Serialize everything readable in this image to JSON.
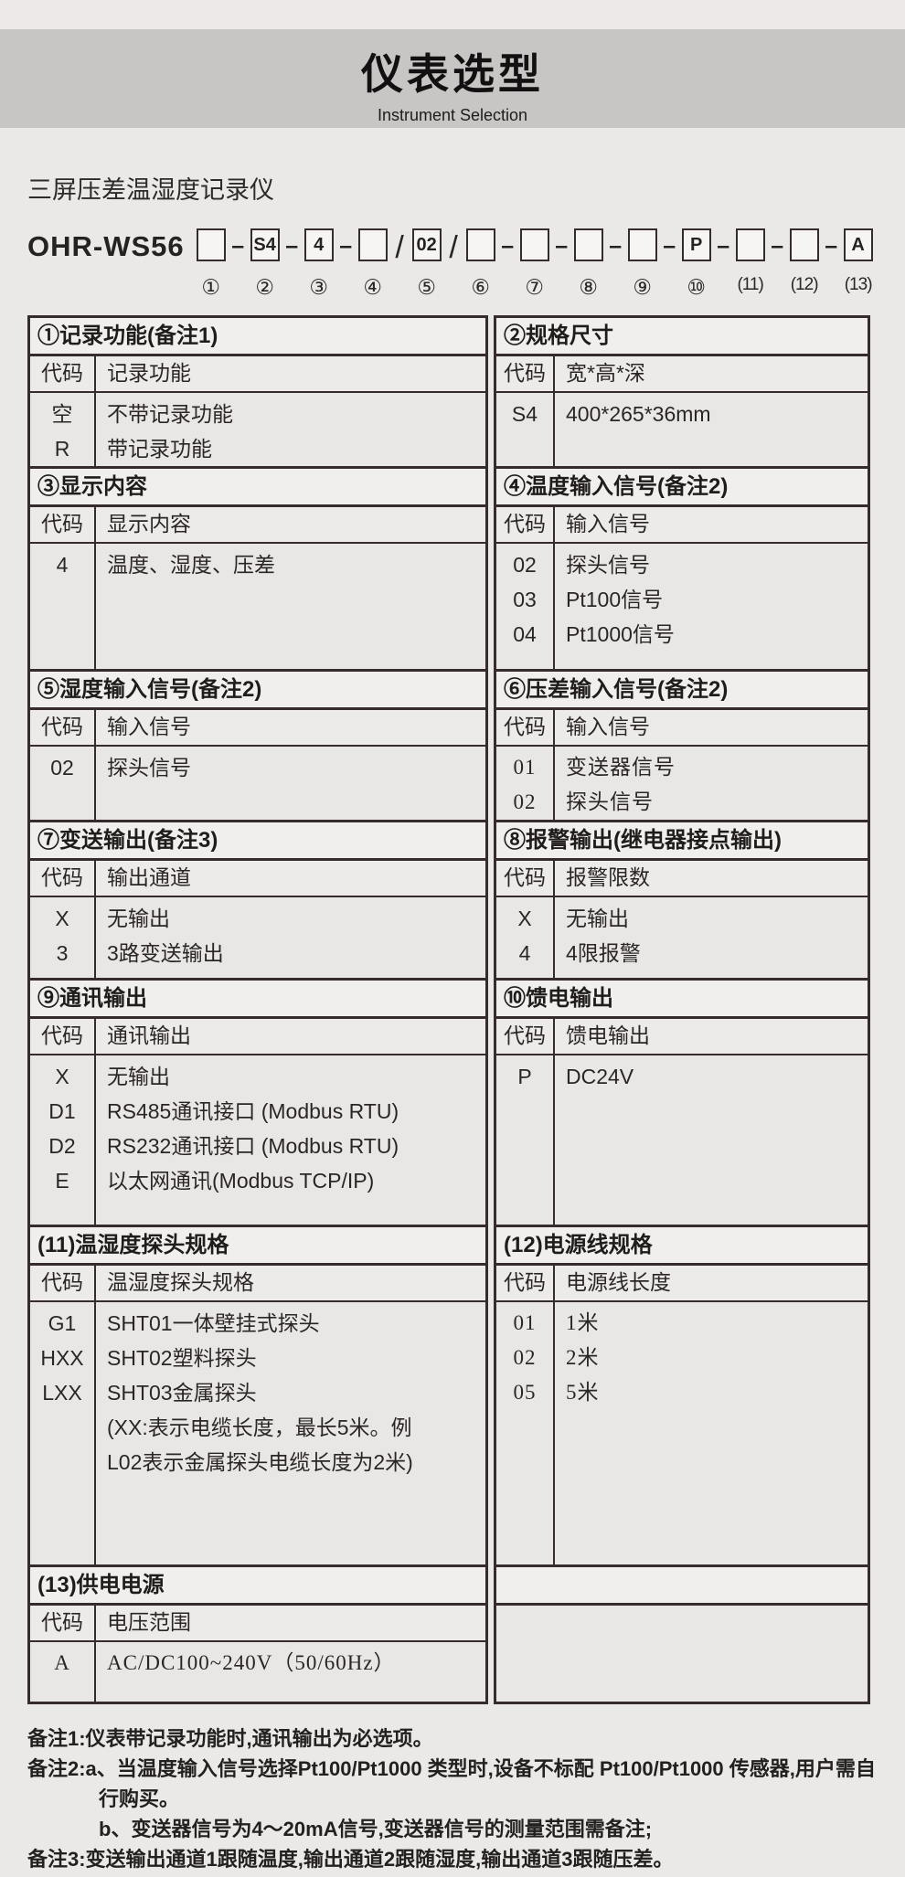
{
  "banner": {
    "title": "仪表选型",
    "subtitle": "Instrument Selection",
    "bg_color": "#c8c6c4"
  },
  "product": {
    "name": "三屏压差温湿度记录仪",
    "model_prefix": "OHR-WS56"
  },
  "model_code": {
    "units": [
      {
        "value": "",
        "label": "①",
        "sep": "–"
      },
      {
        "value": "S4",
        "label": "②",
        "sep": "–"
      },
      {
        "value": "4",
        "label": "③",
        "sep": "–"
      },
      {
        "value": "",
        "label": "④",
        "sep": "/"
      },
      {
        "value": "02",
        "label": "⑤",
        "sep": "/"
      },
      {
        "value": "",
        "label": "⑥",
        "sep": "–"
      },
      {
        "value": "",
        "label": "⑦",
        "sep": "–"
      },
      {
        "value": "",
        "label": "⑧",
        "sep": "–"
      },
      {
        "value": "",
        "label": "⑨",
        "sep": "–"
      },
      {
        "value": "P",
        "label": "⑩",
        "sep": "–"
      },
      {
        "value": "",
        "label": "(11)",
        "sep": "–"
      },
      {
        "value": "",
        "label": "(12)",
        "sep": "–"
      },
      {
        "value": "A",
        "label": "(13)",
        "sep": ""
      }
    ]
  },
  "table": {
    "border_color": "#362c2b",
    "sections": [
      {
        "title": "①记录功能(备注1)",
        "columns": [
          "代码",
          "记录功能"
        ],
        "serif": false,
        "rows": [
          {
            "code": "空",
            "desc": "不带记录功能"
          },
          {
            "code": "R",
            "desc": "带记录功能"
          }
        ]
      },
      {
        "title": "②规格尺寸",
        "columns": [
          "代码",
          "宽*高*深"
        ],
        "serif": false,
        "rows": [
          {
            "code": "S4",
            "desc": "400*265*36mm"
          }
        ]
      },
      {
        "title": "③显示内容",
        "columns": [
          "代码",
          "显示内容"
        ],
        "serif": false,
        "rows": [
          {
            "code": "4",
            "desc": "温度、湿度、压差"
          }
        ]
      },
      {
        "title": "④温度输入信号(备注2)",
        "columns": [
          "代码",
          "输入信号"
        ],
        "serif": false,
        "rows": [
          {
            "code": "02",
            "desc": "探头信号"
          },
          {
            "code": "03",
            "desc": "Pt100信号"
          },
          {
            "code": "04",
            "desc": "Pt1000信号"
          }
        ]
      },
      {
        "title": "⑤湿度输入信号(备注2)",
        "columns": [
          "代码",
          "输入信号"
        ],
        "serif": false,
        "rows": [
          {
            "code": "02",
            "desc": "探头信号"
          }
        ]
      },
      {
        "title": "⑥压差输入信号(备注2)",
        "columns": [
          "代码",
          "输入信号"
        ],
        "serif": true,
        "rows": [
          {
            "code": "01",
            "desc": "变送器信号"
          },
          {
            "code": "02",
            "desc": "探头信号"
          }
        ]
      },
      {
        "title": "⑦变送输出(备注3)",
        "columns": [
          "代码",
          "输出通道"
        ],
        "serif": false,
        "rows": [
          {
            "code": "X",
            "desc": "无输出"
          },
          {
            "code": "3",
            "desc": "3路变送输出"
          }
        ]
      },
      {
        "title": "⑧报警输出(继电器接点输出)",
        "columns": [
          "代码",
          "报警限数"
        ],
        "serif": false,
        "rows": [
          {
            "code": "X",
            "desc": "无输出"
          },
          {
            "code": "4",
            "desc": "4限报警"
          }
        ]
      },
      {
        "title": "⑨通讯输出",
        "columns": [
          "代码",
          "通讯输出"
        ],
        "serif": false,
        "rows": [
          {
            "code": "X",
            "desc": "无输出"
          },
          {
            "code": "D1",
            "desc": "RS485通讯接口 (Modbus RTU)"
          },
          {
            "code": "D2",
            "desc": "RS232通讯接口 (Modbus RTU)"
          },
          {
            "code": "E",
            "desc": "以太网通讯(Modbus TCP/IP)"
          }
        ]
      },
      {
        "title": "⑩馈电输出",
        "columns": [
          "代码",
          "馈电输出"
        ],
        "serif": false,
        "rows": [
          {
            "code": "P",
            "desc": "DC24V"
          }
        ]
      },
      {
        "title": "(11)温湿度探头规格",
        "columns": [
          "代码",
          "温湿度探头规格"
        ],
        "serif": false,
        "rows": [
          {
            "code": "G1",
            "desc": "SHT01一体壁挂式探头"
          },
          {
            "code": "HXX",
            "desc": "SHT02塑料探头"
          },
          {
            "code": "LXX",
            "desc": "SHT03金属探头"
          }
        ],
        "note": "(XX:表示电缆长度，最长5米。例L02表示金属探头电缆长度为2米)"
      },
      {
        "title": "(12)电源线规格",
        "columns": [
          "代码",
          "电源线长度"
        ],
        "serif": true,
        "rows": [
          {
            "code": "01",
            "desc": "1米"
          },
          {
            "code": "02",
            "desc": "2米"
          },
          {
            "code": "05",
            "desc": "5米"
          }
        ]
      },
      {
        "title": "(13)供电电源",
        "columns": [
          "代码",
          "电压范围"
        ],
        "serif": true,
        "rows": [
          {
            "code": "A",
            "desc": "AC/DC100~240V（50/60Hz）"
          }
        ]
      }
    ]
  },
  "notes": [
    {
      "text": "备注1:仪表带记录功能时,通讯输出为必选项。",
      "style": ""
    },
    {
      "text": "备注2:a、当温度输入信号选择Pt100/Pt1000 类型时,设备不标配 Pt100/Pt1000 传感器,用户需自行购买。",
      "style": "hang"
    },
    {
      "text": "b、变送器信号为4～20mA信号,变送器信号的测量范围需备注;",
      "style": "ind"
    },
    {
      "text": "备注3:变送输出通道1跟随温度,输出通道2跟随湿度,输出通道3跟随压差。",
      "style": ""
    }
  ]
}
